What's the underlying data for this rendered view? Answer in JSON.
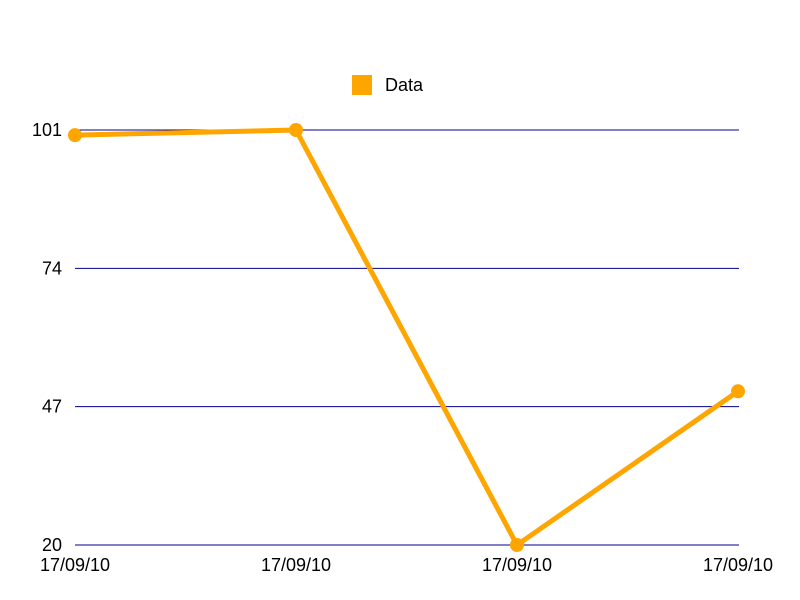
{
  "chart_data": {
    "type": "line",
    "title": "",
    "xlabel": "",
    "ylabel": "",
    "categories": [
      "17/09/10",
      "17/09/10",
      "17/09/10",
      "17/09/10"
    ],
    "series": [
      {
        "name": "Data",
        "values": [
          100,
          101,
          20,
          50
        ]
      }
    ],
    "ylim": [
      20,
      101
    ],
    "yticks": [
      "20",
      "47",
      "74",
      "101"
    ],
    "grid": true,
    "legend": "top-center",
    "colors": {
      "series": "#ffa500",
      "grid": "#00008b",
      "text": "#000000"
    }
  }
}
